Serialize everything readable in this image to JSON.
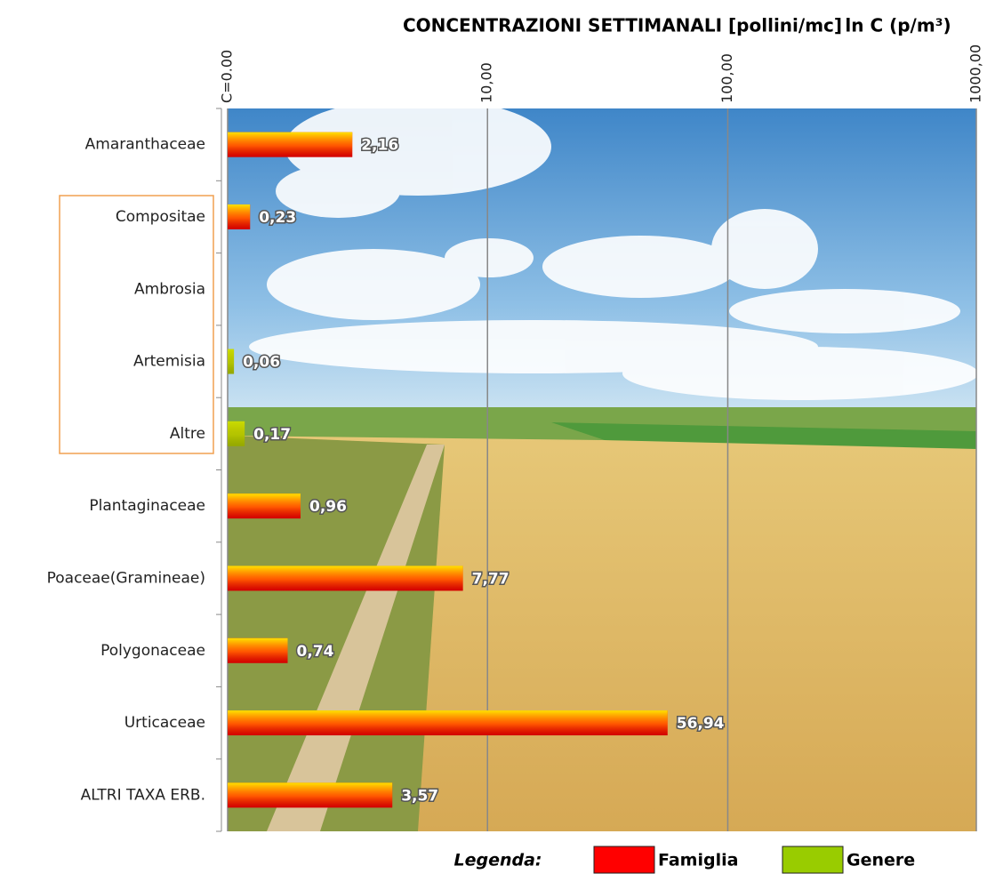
{
  "chart_data": {
    "type": "bar",
    "orientation": "horizontal",
    "title": "CONCENTRAZIONI SETTIMANALI  [pollini/mc]",
    "x_label": "ln C (p/m³)",
    "categories": [
      "Amaranthaceae",
      "Compositae",
      "Ambrosia",
      "Artemisia",
      "Altre",
      "Plantaginaceae",
      "Poaceae(Gramineae)",
      "Polygonaceae",
      "Urticaceae",
      "ALTRI TAXA ERB."
    ],
    "series": [
      {
        "name": "Famiglia",
        "color": "#ff0000",
        "values": [
          2.16,
          0.23,
          null,
          null,
          null,
          0.96,
          7.77,
          0.74,
          56.94,
          3.57
        ],
        "value_labels": [
          "2,16",
          "0,23",
          null,
          null,
          null,
          "0,96",
          "7,77",
          "0,74",
          "56,94",
          "3,57"
        ]
      },
      {
        "name": "Genere",
        "color": "#99cc00",
        "values": [
          null,
          null,
          null,
          0.06,
          0.17,
          null,
          null,
          null,
          null,
          null
        ],
        "value_labels": [
          null,
          null,
          null,
          "0,06",
          "0,17",
          null,
          null,
          null,
          null,
          null
        ]
      }
    ],
    "xscale": "log1p",
    "xlim": [
      0,
      1000
    ],
    "xticks": [
      {
        "value": 0,
        "label": "C=0.00"
      },
      {
        "value": 10,
        "label": "10,00"
      },
      {
        "value": 100,
        "label": "100,00"
      },
      {
        "value": 1000,
        "label": "1000,00"
      }
    ],
    "grid": true,
    "legend_title": "Legenda:",
    "legend_position": "bottom"
  }
}
